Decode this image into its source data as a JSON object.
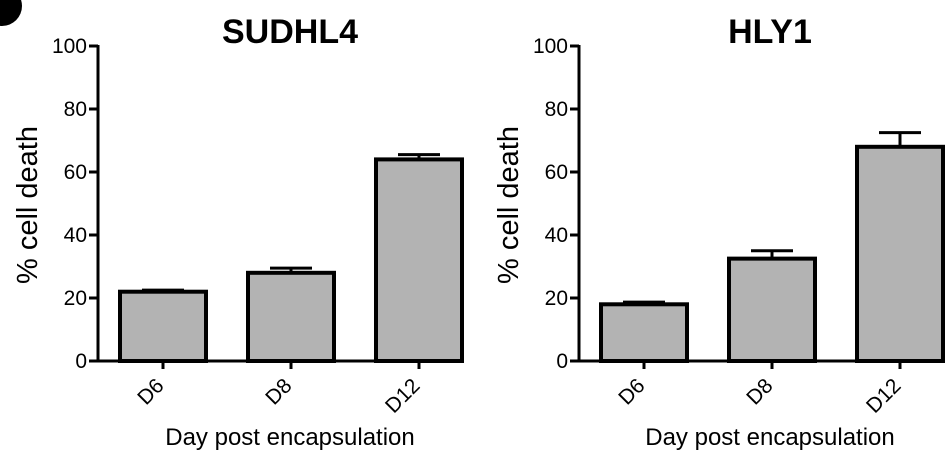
{
  "chart_data": [
    {
      "type": "bar",
      "title": "SUDHL4",
      "xlabel": "Day post encapsulation",
      "ylabel": "% cell death",
      "ylim": [
        0,
        100
      ],
      "yticks": [
        0,
        20,
        40,
        60,
        80,
        100
      ],
      "categories": [
        "D6",
        "D8",
        "D12"
      ],
      "values": [
        22,
        28,
        64
      ],
      "errors": [
        0.5,
        1.5,
        1.5
      ],
      "bar_color": "#b3b3b3"
    },
    {
      "type": "bar",
      "title": "HLY1",
      "xlabel": "Day post encapsulation",
      "ylabel": "% cell death",
      "ylim": [
        0,
        100
      ],
      "yticks": [
        0,
        20,
        40,
        60,
        80,
        100
      ],
      "categories": [
        "D6",
        "D8",
        "D12"
      ],
      "values": [
        18,
        32.5,
        68
      ],
      "errors": [
        0.7,
        2.5,
        4.5
      ],
      "bar_color": "#b3b3b3"
    }
  ]
}
